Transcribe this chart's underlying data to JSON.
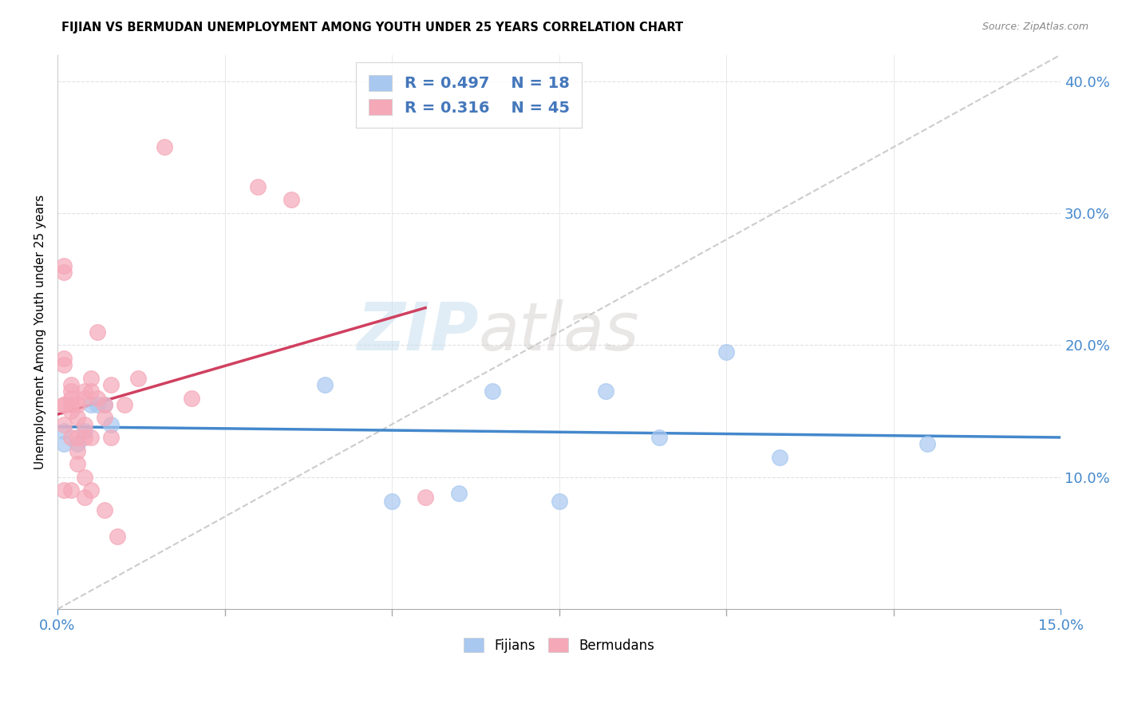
{
  "title": "FIJIAN VS BERMUDAN UNEMPLOYMENT AMONG YOUTH UNDER 25 YEARS CORRELATION CHART",
  "source": "Source: ZipAtlas.com",
  "ylabel": "Unemployment Among Youth under 25 years",
  "xlabel": "",
  "xlim": [
    0,
    0.15
  ],
  "ylim": [
    0,
    0.42
  ],
  "xticks": [
    0.0,
    0.15
  ],
  "yticks": [
    0.1,
    0.2,
    0.3,
    0.4
  ],
  "fijian_color": "#a8c8f0",
  "bermudan_color": "#f5a8b8",
  "fijian_line_color": "#4488cc",
  "bermudan_line_color": "#d04060",
  "diagonal_color": "#cccccc",
  "R_fijian": 0.497,
  "N_fijian": 18,
  "R_bermudan": 0.316,
  "N_bermudan": 45,
  "legend_text_color": "#4477bb",
  "watermark_zip": "ZIP",
  "watermark_atlas": "atlas",
  "fijians_x": [
    0.001,
    0.001,
    0.003,
    0.004,
    0.005,
    0.006,
    0.007,
    0.008,
    0.04,
    0.05,
    0.06,
    0.065,
    0.075,
    0.082,
    0.09,
    0.1,
    0.108,
    0.13
  ],
  "fijians_y": [
    0.135,
    0.125,
    0.125,
    0.135,
    0.155,
    0.155,
    0.155,
    0.14,
    0.17,
    0.082,
    0.088,
    0.165,
    0.082,
    0.165,
    0.13,
    0.195,
    0.115,
    0.125
  ],
  "bermudans_x": [
    0.001,
    0.001,
    0.001,
    0.001,
    0.001,
    0.001,
    0.001,
    0.001,
    0.002,
    0.002,
    0.002,
    0.002,
    0.002,
    0.002,
    0.002,
    0.003,
    0.003,
    0.003,
    0.003,
    0.003,
    0.004,
    0.004,
    0.004,
    0.004,
    0.004,
    0.004,
    0.005,
    0.005,
    0.005,
    0.005,
    0.006,
    0.006,
    0.007,
    0.007,
    0.007,
    0.008,
    0.008,
    0.009,
    0.01,
    0.012,
    0.016,
    0.02,
    0.03,
    0.035,
    0.055
  ],
  "bermudans_y": [
    0.255,
    0.26,
    0.19,
    0.185,
    0.155,
    0.155,
    0.14,
    0.09,
    0.17,
    0.165,
    0.16,
    0.155,
    0.15,
    0.13,
    0.09,
    0.155,
    0.145,
    0.13,
    0.12,
    0.11,
    0.165,
    0.16,
    0.14,
    0.13,
    0.1,
    0.085,
    0.175,
    0.165,
    0.13,
    0.09,
    0.21,
    0.16,
    0.155,
    0.145,
    0.075,
    0.17,
    0.13,
    0.055,
    0.155,
    0.175,
    0.35,
    0.16,
    0.32,
    0.31,
    0.085
  ],
  "background_color": "#ffffff",
  "grid_color": "#e0e0e0"
}
